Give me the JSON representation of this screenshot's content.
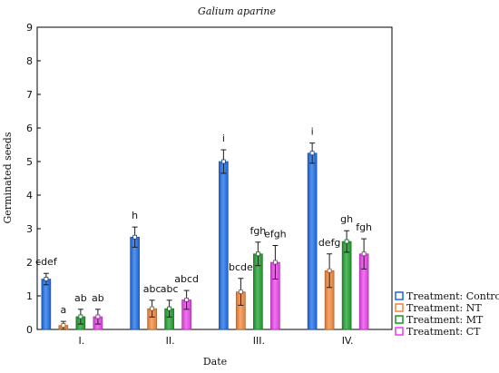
{
  "chart_data": {
    "type": "bar",
    "title": "Galium aparine",
    "xlabel": "Date",
    "ylabel": "Germinated seeds",
    "ylim": [
      0,
      9
    ],
    "yticks": [
      0,
      1,
      2,
      3,
      4,
      5,
      6,
      7,
      8,
      9
    ],
    "grid": false,
    "legend_position": "bottom-right",
    "categories": [
      "I.",
      "II.",
      "III.",
      "IV."
    ],
    "series": [
      {
        "name": "Treatment: Control",
        "color": "#1E6FE8",
        "values": [
          1.5,
          2.75,
          5.0,
          5.25
        ],
        "errors": [
          0.17,
          0.3,
          0.35,
          0.3
        ],
        "labels": [
          "cdef",
          "h",
          "i",
          "i"
        ]
      },
      {
        "name": "Treatment: NT",
        "color": "#F58A3C",
        "values": [
          0.12,
          0.62,
          1.12,
          1.75
        ],
        "errors": [
          0.12,
          0.25,
          0.4,
          0.5
        ],
        "labels": [
          "a",
          "abc",
          "bcde",
          "defg"
        ]
      },
      {
        "name": "Treatment: MT",
        "color": "#1FA12F",
        "values": [
          0.38,
          0.62,
          2.25,
          2.62
        ],
        "errors": [
          0.22,
          0.25,
          0.35,
          0.32
        ],
        "labels": [
          "ab",
          "abc",
          "fgh",
          "gh"
        ]
      },
      {
        "name": "Treatment: CT",
        "color": "#EE44EE",
        "values": [
          0.38,
          0.88,
          2.0,
          2.25
        ],
        "errors": [
          0.22,
          0.28,
          0.5,
          0.45
        ],
        "labels": [
          "ab",
          "abcd",
          "efgh",
          "fgh"
        ]
      }
    ]
  }
}
